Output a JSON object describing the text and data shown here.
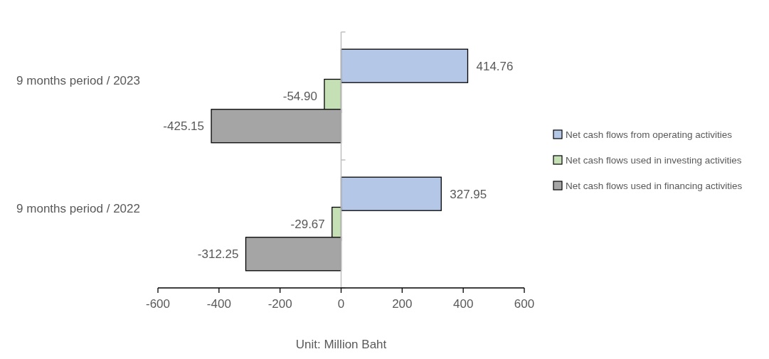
{
  "chart_data": {
    "type": "bar",
    "orientation": "horizontal",
    "categories": [
      "9 months period / 2023",
      "9 months period / 2022"
    ],
    "series": [
      {
        "name": "Net cash flows from operating activities",
        "color": "#b4c7e7",
        "values": [
          414.76,
          327.95
        ]
      },
      {
        "name": "Net cash flows used in investing activities",
        "color": "#c5e0b4",
        "values": [
          -54.9,
          -29.67
        ]
      },
      {
        "name": "Net cash flows used in financing activities",
        "color": "#a5a5a5",
        "values": [
          -425.15,
          -312.25
        ]
      }
    ],
    "value_labels": [
      [
        "414.76",
        "327.95"
      ],
      [
        "-54.90",
        "-29.67"
      ],
      [
        "-425.15",
        "-312.25"
      ]
    ],
    "xlim": [
      -600,
      600
    ],
    "xticks": [
      -600,
      -400,
      -200,
      0,
      200,
      400,
      600
    ],
    "xlabel": "Unit: Million Baht",
    "legend": "right"
  }
}
